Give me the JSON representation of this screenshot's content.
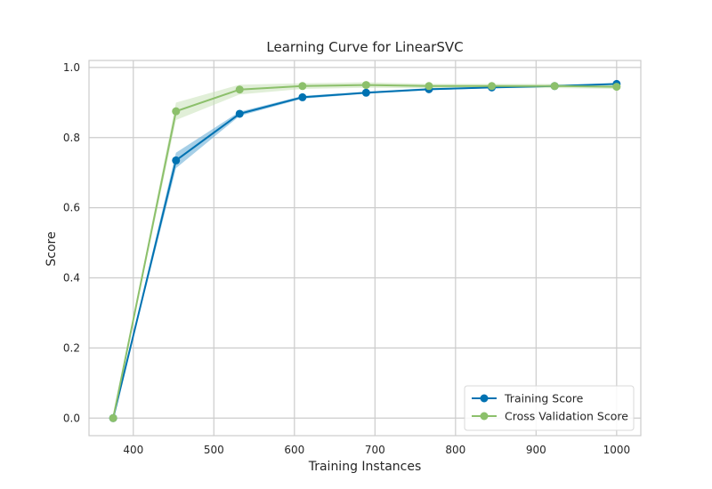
{
  "chart_data": {
    "type": "line",
    "title": "Learning Curve for LinearSVC",
    "xlabel": "Training Instances",
    "ylabel": "Score",
    "xlim": [
      345,
      1030
    ],
    "ylim": [
      -0.05,
      1.02
    ],
    "xticks": [
      "400",
      "500",
      "600",
      "700",
      "800",
      "900",
      "1000"
    ],
    "xtick_values": [
      400,
      500,
      600,
      700,
      800,
      900,
      1000
    ],
    "yticks": [
      "0.0",
      "0.2",
      "0.4",
      "0.6",
      "0.8",
      "1.0"
    ],
    "ytick_values": [
      0.0,
      0.2,
      0.4,
      0.6,
      0.8,
      1.0
    ],
    "grid": true,
    "legend_position": "bottom-right",
    "x": [
      375,
      453,
      532,
      610,
      689,
      767,
      845,
      923,
      1000
    ],
    "series": [
      {
        "name": "Training Score",
        "color": "#0072b2",
        "band_color": "#5da8d4",
        "values": [
          0.0,
          0.735,
          0.868,
          0.915,
          0.928,
          0.938,
          0.943,
          0.947,
          0.953
        ],
        "band": [
          0.0,
          0.022,
          0.006,
          0.004,
          0.003,
          0.003,
          0.002,
          0.002,
          0.002
        ]
      },
      {
        "name": "Cross Validation Score",
        "color": "#8cc06b",
        "band_color": "#c9e2b8",
        "values": [
          0.0,
          0.875,
          0.937,
          0.947,
          0.95,
          0.947,
          0.947,
          0.947,
          0.945
        ],
        "band": [
          0.0,
          0.025,
          0.014,
          0.008,
          0.008,
          0.006,
          0.006,
          0.006,
          0.006
        ]
      }
    ]
  }
}
